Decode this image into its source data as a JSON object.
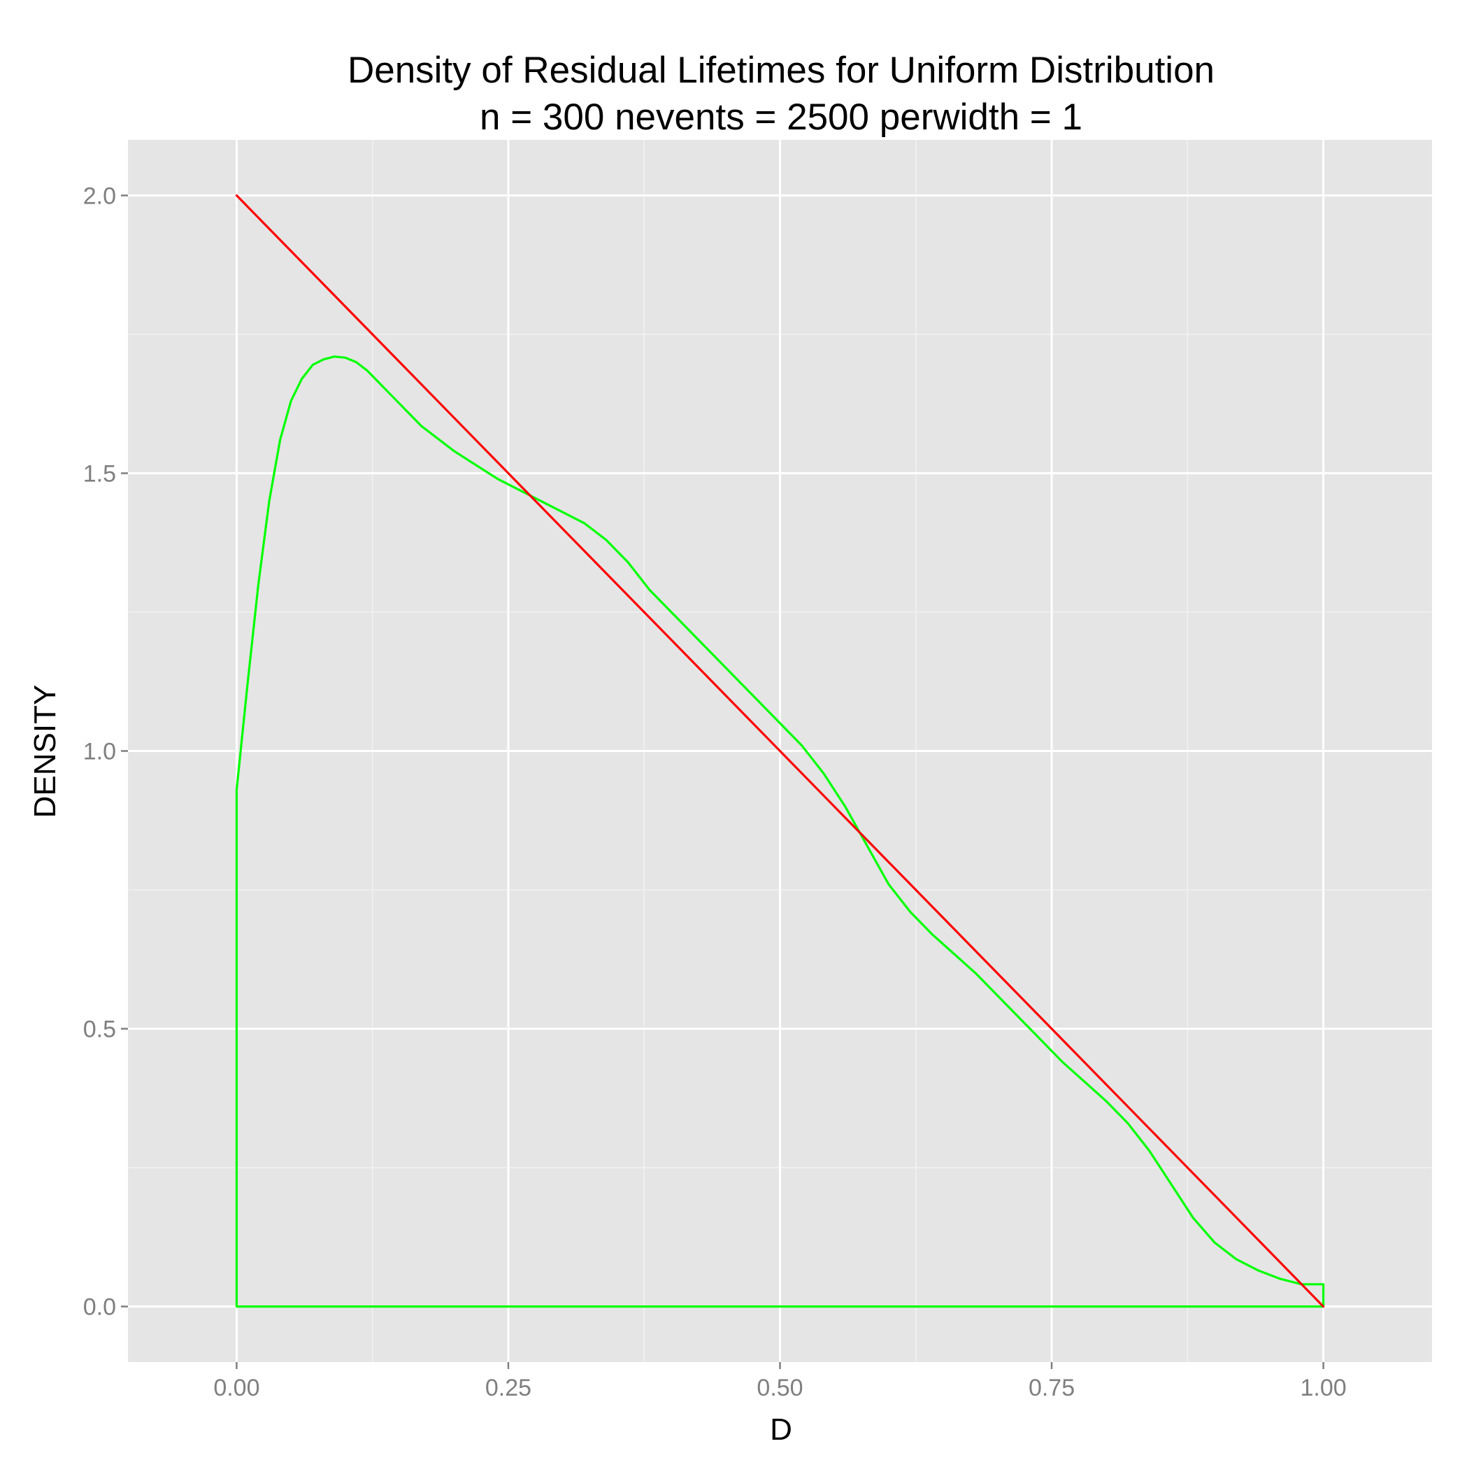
{
  "chart_data": {
    "type": "line",
    "title": "Density of Residual Lifetimes for Uniform Distribution",
    "subtitle": "n = 300 nevents = 2500 perwidth = 1",
    "xlabel": "D",
    "ylabel": "DENSITY",
    "xlim": [
      -0.1,
      1.1
    ],
    "ylim": [
      -0.1,
      2.1
    ],
    "x_ticks": [
      0,
      0.25,
      0.5,
      0.75,
      1.0
    ],
    "x_tick_labels": [
      "0.00",
      "0.25",
      "0.50",
      "0.75",
      "1.00"
    ],
    "y_ticks": [
      0,
      0.5,
      1.0,
      1.5,
      2.0
    ],
    "y_tick_labels": [
      "0.0",
      "0.5",
      "1.0",
      "1.5",
      "2.0"
    ],
    "grid": true,
    "background": "#e5e5e5",
    "series": [
      {
        "color": "#00ff00",
        "x": [
          0.0,
          0.0,
          0.01,
          0.02,
          0.03,
          0.04,
          0.05,
          0.06,
          0.07,
          0.08,
          0.09,
          0.1,
          0.11,
          0.12,
          0.13,
          0.14,
          0.15,
          0.16,
          0.17,
          0.18,
          0.2,
          0.22,
          0.24,
          0.26,
          0.28,
          0.3,
          0.32,
          0.34,
          0.36,
          0.38,
          0.4,
          0.42,
          0.44,
          0.46,
          0.48,
          0.5,
          0.52,
          0.54,
          0.56,
          0.58,
          0.6,
          0.62,
          0.64,
          0.66,
          0.68,
          0.7,
          0.72,
          0.74,
          0.76,
          0.78,
          0.8,
          0.82,
          0.84,
          0.86,
          0.88,
          0.9,
          0.92,
          0.94,
          0.96,
          0.98,
          1.0,
          1.0,
          0.0
        ],
        "y": [
          0.0,
          0.93,
          1.12,
          1.3,
          1.45,
          1.56,
          1.63,
          1.67,
          1.695,
          1.705,
          1.71,
          1.708,
          1.7,
          1.685,
          1.665,
          1.645,
          1.625,
          1.605,
          1.585,
          1.57,
          1.54,
          1.515,
          1.49,
          1.47,
          1.45,
          1.43,
          1.41,
          1.38,
          1.34,
          1.29,
          1.25,
          1.21,
          1.17,
          1.13,
          1.09,
          1.05,
          1.01,
          0.96,
          0.9,
          0.83,
          0.76,
          0.71,
          0.67,
          0.635,
          0.6,
          0.56,
          0.52,
          0.48,
          0.44,
          0.405,
          0.37,
          0.33,
          0.28,
          0.22,
          0.16,
          0.115,
          0.085,
          0.065,
          0.05,
          0.04,
          0.04,
          0.0,
          0.0
        ]
      },
      {
        "color": "#ff0000",
        "x": [
          0.0,
          1.0
        ],
        "y": [
          2.0,
          0.0
        ]
      }
    ]
  }
}
